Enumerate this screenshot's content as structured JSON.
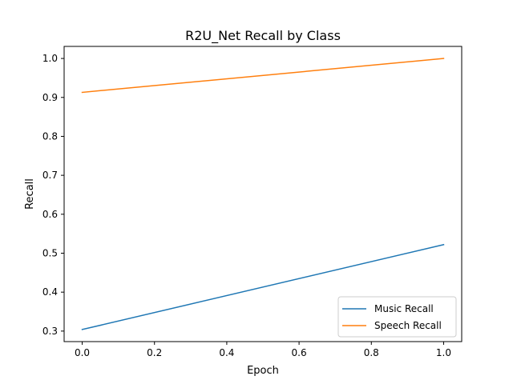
{
  "chart_data": {
    "type": "line",
    "title": "R2U_Net Recall by Class",
    "xlabel": "Epoch",
    "ylabel": "Recall",
    "x": [
      0,
      1
    ],
    "xlim": [
      -0.05,
      1.05
    ],
    "ylim": [
      0.273,
      1.031
    ],
    "xticks": [
      0.0,
      0.2,
      0.4,
      0.6,
      0.8,
      1.0
    ],
    "xtick_labels": [
      "0.0",
      "0.2",
      "0.4",
      "0.6",
      "0.8",
      "1.0"
    ],
    "yticks": [
      0.3,
      0.4,
      0.5,
      0.6,
      0.7,
      0.8,
      0.9,
      1.0
    ],
    "ytick_labels": [
      "0.3",
      "0.4",
      "0.5",
      "0.6",
      "0.7",
      "0.8",
      "0.9",
      "1.0"
    ],
    "grid": false,
    "legend_position": "bottom-right",
    "series": [
      {
        "name": "Music Recall",
        "values": [
          0.304,
          0.522
        ],
        "color": "#1f77b4"
      },
      {
        "name": "Speech Recall",
        "values": [
          0.913,
          1.0
        ],
        "color": "#ff7f0e"
      }
    ]
  }
}
